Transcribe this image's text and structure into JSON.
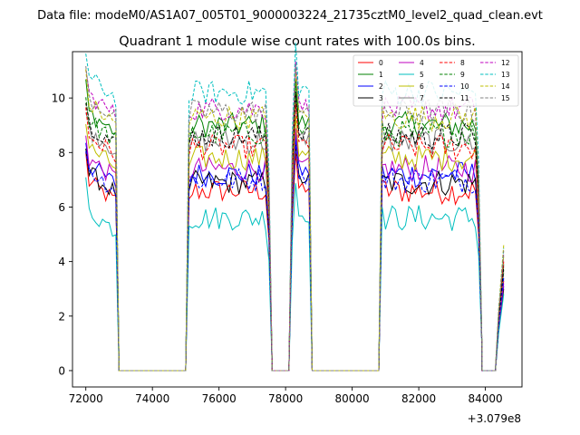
{
  "suptitle": "Data file: modeM0/AS1A07_005T01_9000003224_21735cztM0_level2_quad_clean.evt",
  "chart_data": {
    "type": "line",
    "title": "Quadrant 1 module wise count rates with 100.0s bins.",
    "xlabel": "",
    "ylabel": "",
    "x_offset": 307900000,
    "x_offset_label": "+3.079e8",
    "xlim": [
      71600,
      85100
    ],
    "ylim": [
      -0.6,
      11.7
    ],
    "xticks": [
      72000,
      74000,
      76000,
      78000,
      80000,
      82000,
      84000
    ],
    "xtick_labels": [
      "72000",
      "74000",
      "76000",
      "78000",
      "80000",
      "82000",
      "84000"
    ],
    "yticks": [
      0,
      2,
      4,
      6,
      8,
      10
    ],
    "ytick_labels": [
      "0",
      "2",
      "4",
      "6",
      "8",
      "10"
    ],
    "grid": false,
    "legend_position": "top-right",
    "bin_width": 100,
    "segments": [
      {
        "start": 72000,
        "end": 72900
      },
      {
        "start": 75100,
        "end": 77500
      },
      {
        "start": 78200,
        "end": 78700
      },
      {
        "start": 80900,
        "end": 83800
      },
      {
        "start": 84400,
        "end": 84550
      }
    ],
    "gaps": [
      {
        "start": 73000,
        "end": 75000
      },
      {
        "start": 77600,
        "end": 78100
      },
      {
        "start": 78800,
        "end": 80800
      },
      {
        "start": 83900,
        "end": 84300
      }
    ],
    "series": [
      {
        "name": "0",
        "color": "#ff0000",
        "dash": "solid",
        "level": 6.6,
        "end_value": 3.3
      },
      {
        "name": "1",
        "color": "#008000",
        "dash": "solid",
        "level": 9.0,
        "end_value": 3.9
      },
      {
        "name": "2",
        "color": "#0000ff",
        "dash": "solid",
        "level": 7.2,
        "end_value": 3.1
      },
      {
        "name": "3",
        "color": "#000000",
        "dash": "solid",
        "level": 6.9,
        "end_value": 3.0
      },
      {
        "name": "4",
        "color": "#bf00bf",
        "dash": "solid",
        "level": 7.4,
        "end_value": 3.2
      },
      {
        "name": "5",
        "color": "#00bfbf",
        "dash": "solid",
        "level": 5.6,
        "end_value": 2.8
      },
      {
        "name": "6",
        "color": "#bfbf00",
        "dash": "solid",
        "level": 7.8,
        "end_value": 4.2
      },
      {
        "name": "7",
        "color": "#808080",
        "dash": "solid",
        "level": 8.4,
        "end_value": 3.6
      },
      {
        "name": "8",
        "color": "#ff0000",
        "dash": "dashed",
        "level": 8.2,
        "end_value": 4.0
      },
      {
        "name": "9",
        "color": "#008000",
        "dash": "dashed",
        "level": 8.7,
        "end_value": 3.7
      },
      {
        "name": "10",
        "color": "#0000ff",
        "dash": "dashed",
        "level": 7.0,
        "end_value": 3.4
      },
      {
        "name": "11",
        "color": "#000000",
        "dash": "dashed",
        "level": 8.6,
        "end_value": 3.8
      },
      {
        "name": "12",
        "color": "#bf00bf",
        "dash": "dashed",
        "level": 9.6,
        "end_value": 4.3
      },
      {
        "name": "13",
        "color": "#00bfbf",
        "dash": "dashed",
        "level": 10.2,
        "end_value": 4.5
      },
      {
        "name": "14",
        "color": "#bfbf00",
        "dash": "dashed",
        "level": 9.3,
        "end_value": 4.6
      },
      {
        "name": "15",
        "color": "#808080",
        "dash": "dashed",
        "level": 9.5,
        "end_value": 4.4
      }
    ]
  }
}
